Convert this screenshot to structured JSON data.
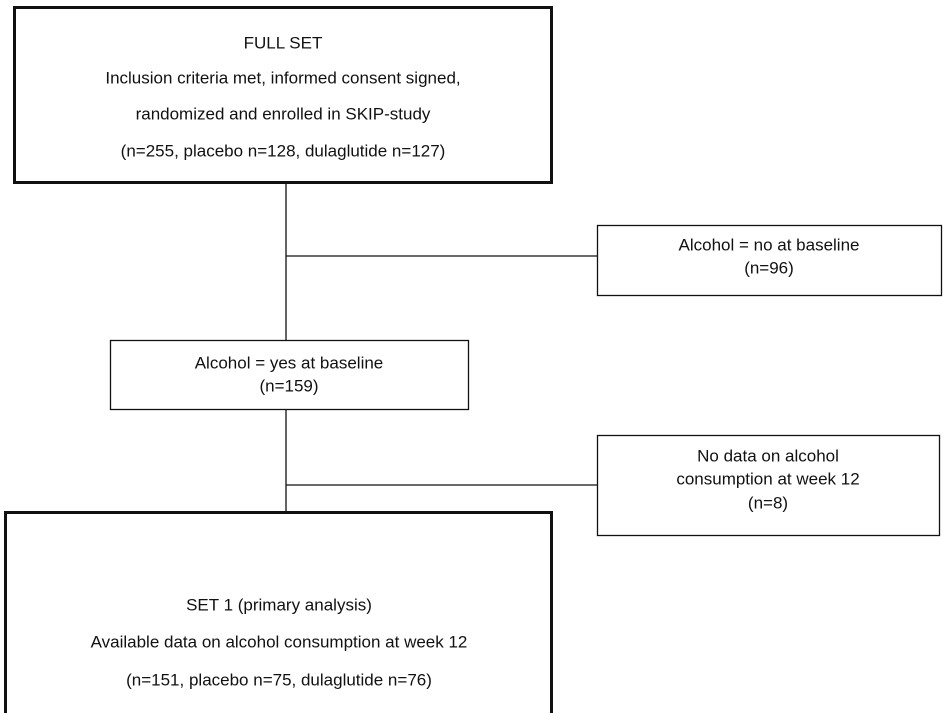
{
  "nodes": [
    {
      "lines": [
        "FULL SET",
        "Inclusion criteria met, informed consent signed,",
        "randomized and enrolled in SKIP-study",
        "(n=255, placebo n=128, dulaglutide n=127)"
      ]
    },
    {
      "lines": [
        "Alcohol = no at baseline",
        "(n=96)"
      ]
    },
    {
      "lines": [
        "Alcohol = yes at baseline",
        "(n=159)"
      ]
    },
    {
      "lines": [
        "No data on alcohol",
        "consumption at week 12",
        "(n=8)"
      ]
    },
    {
      "lines": [
        "SET 1 (primary analysis)",
        "Available data on alcohol consumption at week 12",
        "(n=151, placebo n=75, dulaglutide n=76)"
      ]
    }
  ]
}
